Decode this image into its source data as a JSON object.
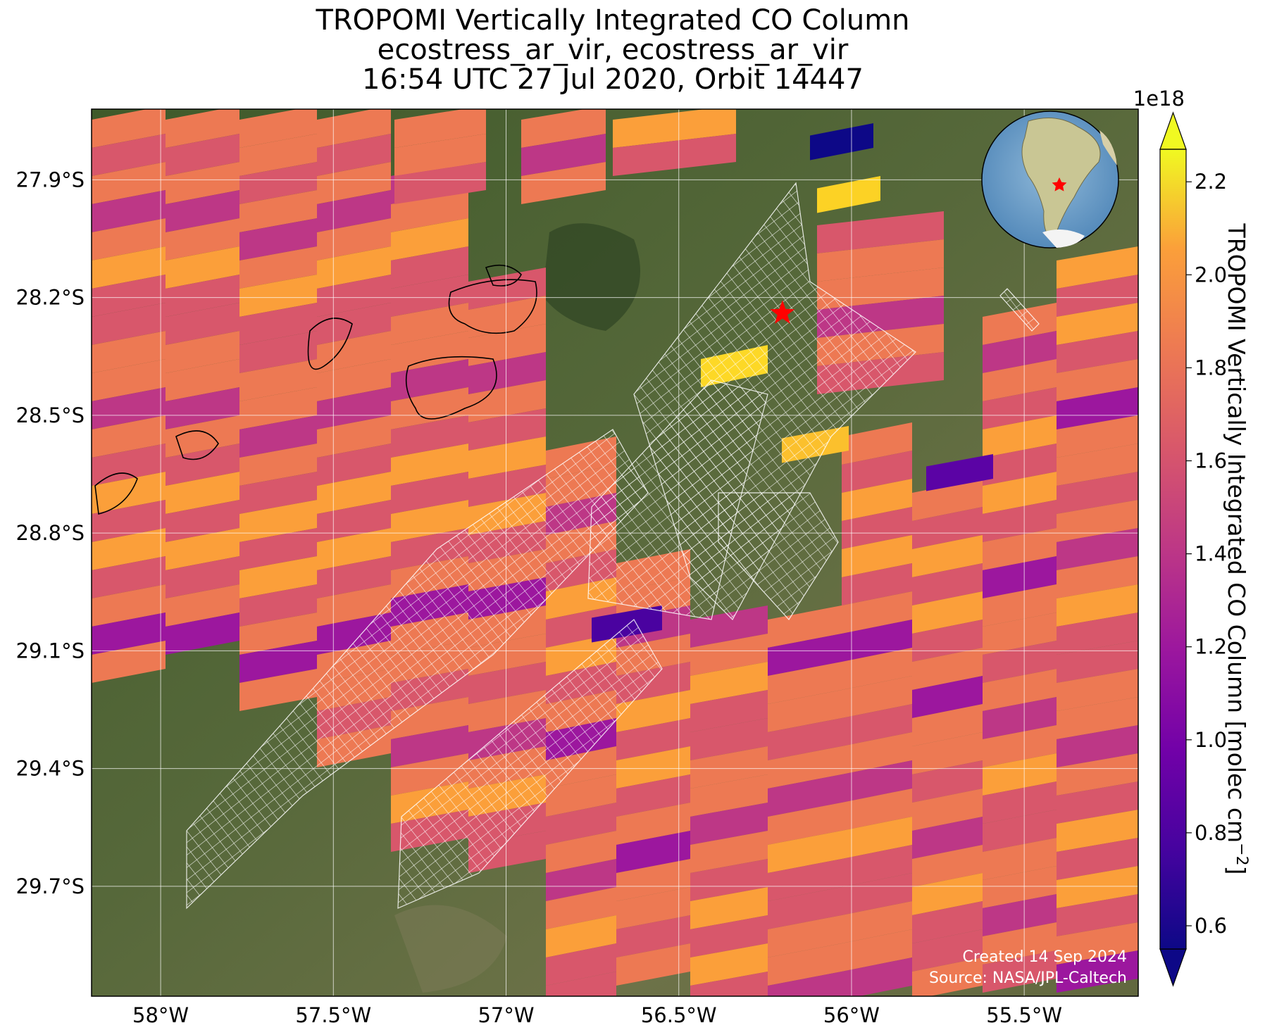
{
  "title": {
    "line1": "TROPOMI Vertically Integrated CO Column",
    "line2": "ecostress_ar_vir, ecostress_ar_vir",
    "line3": "16:54 UTC 27 Jul 2020, Orbit 14447"
  },
  "map": {
    "lon_range": [
      -58.2,
      -55.17
    ],
    "lat_range": [
      -29.98,
      -27.72
    ],
    "lat_ticks": [
      {
        "value": -27.9,
        "label": "27.9°S"
      },
      {
        "value": -28.2,
        "label": "28.2°S"
      },
      {
        "value": -28.5,
        "label": "28.5°S"
      },
      {
        "value": -28.8,
        "label": "28.8°S"
      },
      {
        "value": -29.1,
        "label": "29.1°S"
      },
      {
        "value": -29.4,
        "label": "29.4°S"
      },
      {
        "value": -29.7,
        "label": "29.7°S"
      }
    ],
    "lon_ticks": [
      {
        "value": -58.0,
        "label": "58°W"
      },
      {
        "value": -57.5,
        "label": "57.5°W"
      },
      {
        "value": -57.0,
        "label": "57°W"
      },
      {
        "value": -56.5,
        "label": "56.5°W"
      },
      {
        "value": -56.0,
        "label": "56°W"
      },
      {
        "value": -55.5,
        "label": "55.5°W"
      }
    ],
    "marker": {
      "symbol": "star",
      "lon": -56.2,
      "lat": -28.24,
      "color": "#ff0000"
    },
    "basemap": "satellite imagery",
    "pixel_colormap": "plasma",
    "footprint_overlay": "white quadrilateral grid (ECOSTRESS scenes)",
    "credit_line1": "Created 14 Sep 2024",
    "credit_line2": "Source: NASA/JPL-Caltech"
  },
  "inset": {
    "description": "globe centered on South America",
    "marker_color": "#ff0000"
  },
  "colorbar": {
    "label": "TROPOMI Vertically Integrated CO Column [molec cm",
    "label_exponent": "−2",
    "label_close": "]",
    "offset_label": "1e18",
    "range": [
      0.55,
      2.27
    ],
    "extend": "both",
    "colormap": "plasma",
    "ticks": [
      {
        "value": 0.6,
        "label": "0.6"
      },
      {
        "value": 0.8,
        "label": "0.8"
      },
      {
        "value": 1.0,
        "label": "1.0"
      },
      {
        "value": 1.2,
        "label": "1.2"
      },
      {
        "value": 1.4,
        "label": "1.4"
      },
      {
        "value": 1.6,
        "label": "1.6"
      },
      {
        "value": 1.8,
        "label": "1.8"
      },
      {
        "value": 2.0,
        "label": "2.0"
      },
      {
        "value": 2.2,
        "label": "2.2"
      }
    ]
  }
}
